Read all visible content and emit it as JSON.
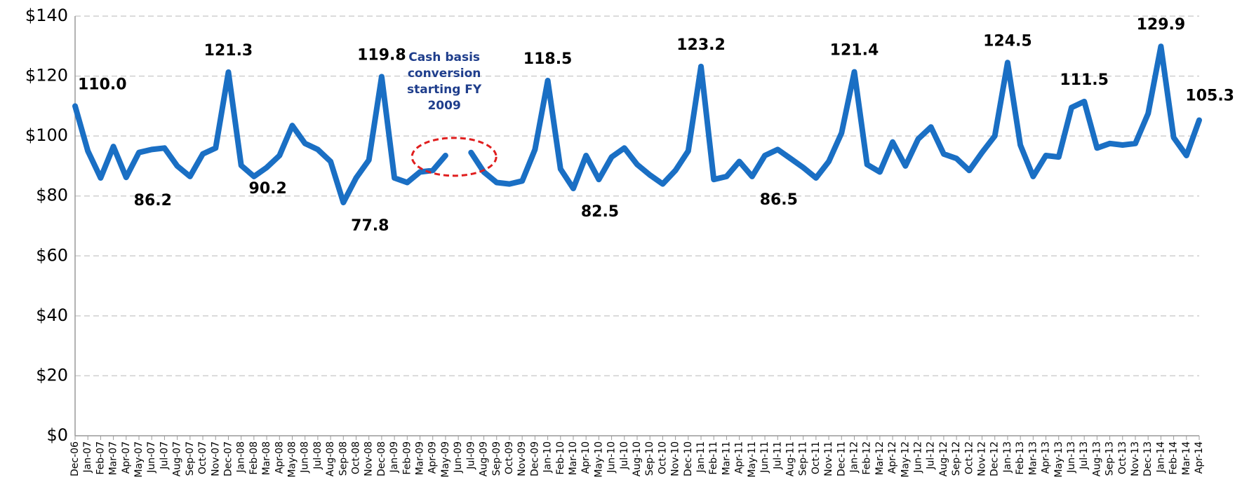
{
  "chart_data": {
    "type": "line",
    "color": "#1a6fc4",
    "grid": true,
    "annotation": [
      "Cash basis",
      "conversion",
      "starting FY",
      "2009"
    ],
    "categories": [
      "Dec-06",
      "Jan-07",
      "Feb-07",
      "Mar-07",
      "Apr-07",
      "May-07",
      "Jun-07",
      "Jul-07",
      "Aug-07",
      "Sep-07",
      "Oct-07",
      "Nov-07",
      "Dec-07",
      "Jan-08",
      "Feb-08",
      "Mar-08",
      "Apr-08",
      "May-08",
      "Jun-08",
      "Jul-08",
      "Aug-08",
      "Sep-08",
      "Oct-08",
      "Nov-08",
      "Dec-08",
      "Jan-09",
      "Feb-09",
      "Mar-09",
      "Apr-09",
      "May-09",
      "Jun-09",
      "Jul-09",
      "Aug-09",
      "Sep-09",
      "Oct-09",
      "Nov-09",
      "Dec-09",
      "Jan-10",
      "Feb-10",
      "Mar-10",
      "Apr-10",
      "May-10",
      "Jun-10",
      "Jul-10",
      "Aug-10",
      "Sep-10",
      "Oct-10",
      "Nov-10",
      "Dec-10",
      "Jan-11",
      "Feb-11",
      "Mar-11",
      "Apr-11",
      "May-11",
      "Jun-11",
      "Jul-11",
      "Aug-11",
      "Sep-11",
      "Oct-11",
      "Nov-11",
      "Dec-11",
      "Jan-12",
      "Feb-12",
      "Mar-12",
      "Apr-12",
      "May-12",
      "Jun-12",
      "Jul-12",
      "Aug-12",
      "Sep-12",
      "Oct-12",
      "Nov-12",
      "Dec-12",
      "Jan-13",
      "Feb-13",
      "Mar-13",
      "Apr-13",
      "May-13",
      "Jun-13",
      "Jul-13",
      "Aug-13",
      "Sep-13",
      "Oct-13",
      "Nov-13",
      "Dec-13",
      "Jan-14",
      "Feb-14",
      "Mar-14",
      "Apr-14"
    ],
    "values": [
      110.0,
      95,
      86,
      96.5,
      86.2,
      94.5,
      95.5,
      96,
      90,
      86.5,
      94,
      96,
      121.3,
      90.2,
      86.5,
      89.5,
      93.5,
      103.5,
      97.5,
      95.5,
      91.5,
      77.8,
      86,
      92,
      119.8,
      86,
      84.5,
      88,
      88.5,
      93.5,
      null,
      94.5,
      88,
      84.5,
      84,
      85,
      95.5,
      118.5,
      89,
      82.5,
      93.5,
      85.5,
      93,
      96,
      90.5,
      87,
      84,
      88.5,
      95,
      123.2,
      85.5,
      86.5,
      91.5,
      86.5,
      93.5,
      95.5,
      92.5,
      89.5,
      86,
      91.5,
      101,
      121.4,
      90.5,
      88,
      98,
      90,
      99,
      103,
      94,
      92.5,
      88.5,
      94.5,
      100,
      124.5,
      97,
      86.5,
      93.5,
      93,
      109.5,
      111.5,
      96,
      97.5,
      97,
      97.5,
      107.5,
      129.9,
      99.5,
      93.5,
      105.3
    ],
    "value_labels": [
      "110.0",
      null,
      null,
      null,
      "86.2",
      null,
      null,
      null,
      null,
      null,
      null,
      null,
      "121.3",
      "90.2",
      null,
      null,
      null,
      null,
      null,
      null,
      null,
      "77.8",
      null,
      null,
      "119.8",
      null,
      null,
      null,
      null,
      null,
      null,
      null,
      null,
      null,
      null,
      null,
      null,
      "118.5",
      null,
      "82.5",
      null,
      null,
      null,
      null,
      null,
      null,
      null,
      null,
      null,
      "123.2",
      null,
      null,
      null,
      "86.5",
      null,
      null,
      null,
      null,
      null,
      null,
      null,
      "121.4",
      null,
      null,
      null,
      null,
      null,
      null,
      null,
      null,
      null,
      null,
      null,
      "124.5",
      null,
      null,
      null,
      null,
      null,
      "111.5",
      null,
      null,
      null,
      null,
      null,
      "129.9",
      null,
      null,
      "105.3"
    ],
    "ylim": [
      0,
      140
    ],
    "yticks": [
      {
        "value": 0,
        "label": "$0"
      },
      {
        "value": 20,
        "label": "$20"
      },
      {
        "value": 40,
        "label": "$40"
      },
      {
        "value": 60,
        "label": "$60"
      },
      {
        "value": 80,
        "label": "$80"
      },
      {
        "value": 100,
        "label": "$100"
      },
      {
        "value": 120,
        "label": "$120"
      },
      {
        "value": 140,
        "label": "$140"
      }
    ]
  }
}
